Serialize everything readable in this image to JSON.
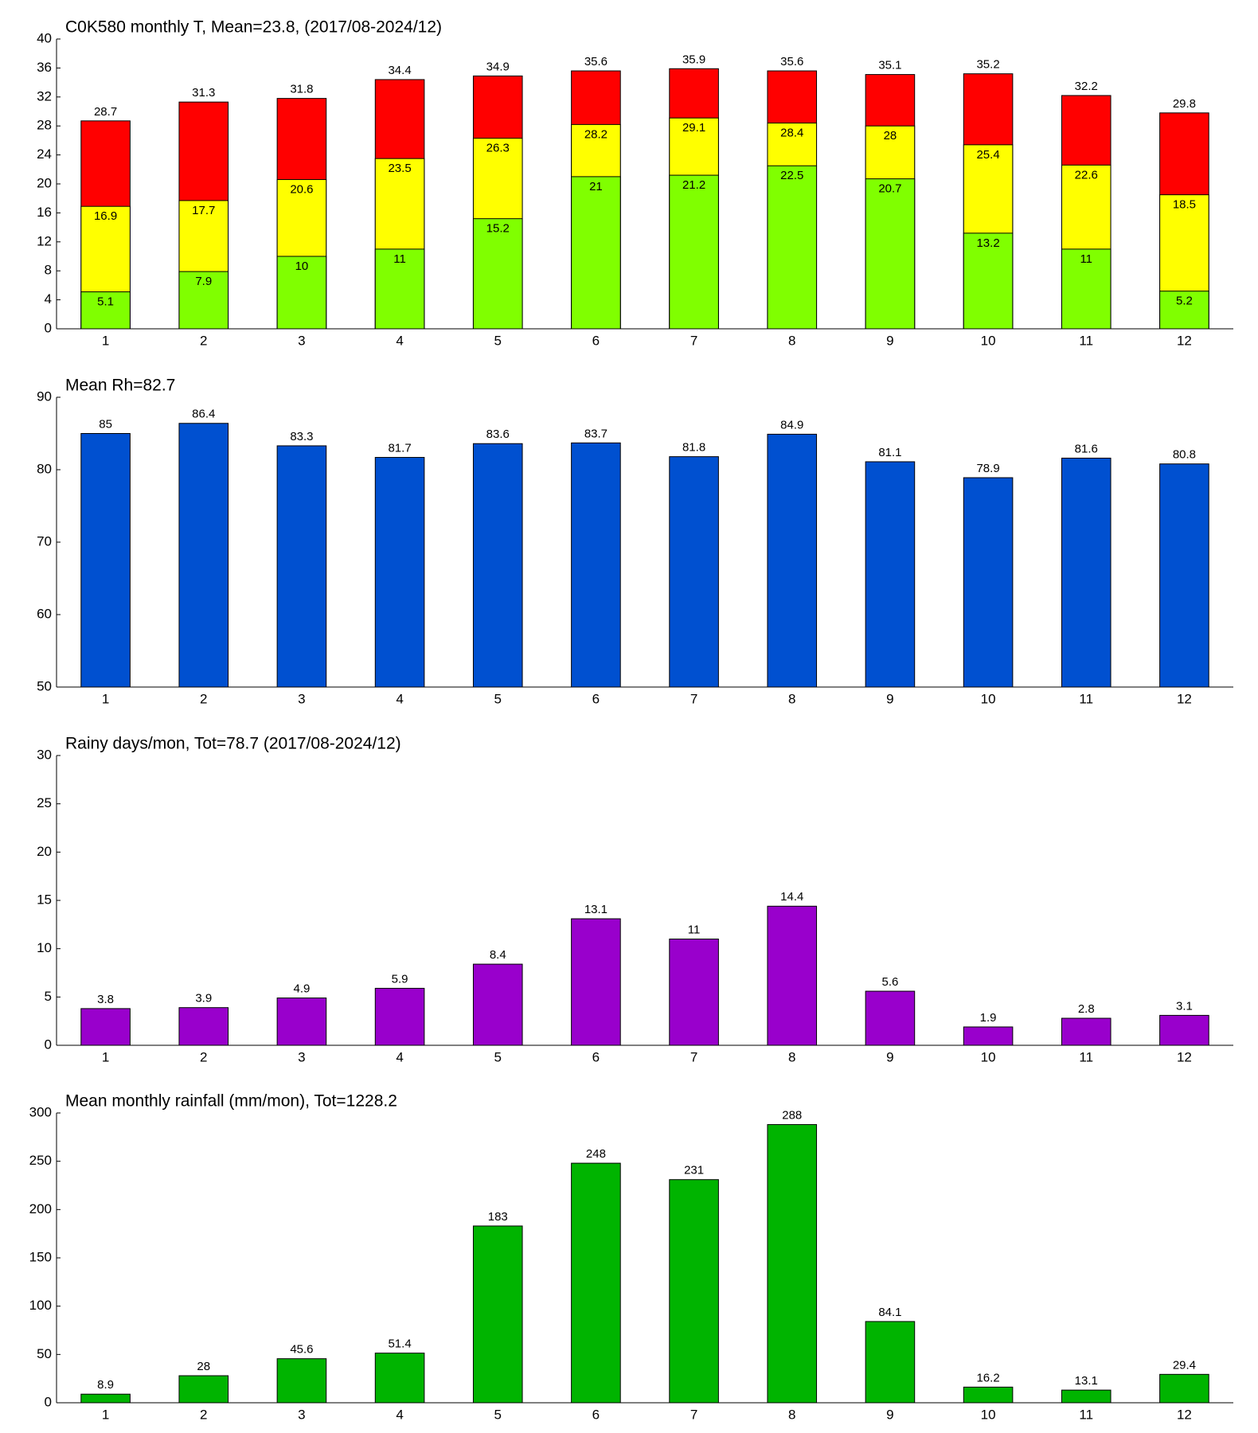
{
  "chart_data": [
    {
      "type": "bar",
      "barmode": "overlay",
      "title": "C0K580 monthly T, Mean=23.8, (2017/08-2024/12)",
      "categories": [
        "1",
        "2",
        "3",
        "4",
        "5",
        "6",
        "7",
        "8",
        "9",
        "10",
        "11",
        "12"
      ],
      "series": [
        {
          "color": "#ff0000",
          "values": [
            28.7,
            31.3,
            31.8,
            34.4,
            34.9,
            35.6,
            35.9,
            35.6,
            35.1,
            35.2,
            32.2,
            29.8
          ]
        },
        {
          "color": "#ffff00",
          "values": [
            16.9,
            17.7,
            20.6,
            23.5,
            26.3,
            28.2,
            29.1,
            28.4,
            28,
            25.4,
            22.6,
            18.5
          ]
        },
        {
          "color": "#80ff00",
          "values": [
            5.1,
            7.9,
            10,
            11,
            15.2,
            21,
            21.2,
            22.5,
            20.7,
            13.2,
            11,
            5.2
          ]
        }
      ],
      "ylim": [
        0,
        40
      ],
      "yticks": [
        0,
        4,
        8,
        12,
        16,
        20,
        24,
        28,
        32,
        36,
        40
      ]
    },
    {
      "type": "bar",
      "title": "Mean Rh=82.7",
      "categories": [
        "1",
        "2",
        "3",
        "4",
        "5",
        "6",
        "7",
        "8",
        "9",
        "10",
        "11",
        "12"
      ],
      "series": [
        {
          "color": "#0050d0",
          "values": [
            85,
            86.4,
            83.3,
            81.7,
            83.6,
            83.7,
            81.8,
            84.9,
            81.1,
            78.9,
            81.6,
            80.8
          ]
        }
      ],
      "ylim": [
        50,
        90
      ],
      "yticks": [
        50,
        60,
        70,
        80,
        90
      ]
    },
    {
      "type": "bar",
      "title": "Rainy days/mon, Tot=78.7 (2017/08-2024/12)",
      "categories": [
        "1",
        "2",
        "3",
        "4",
        "5",
        "6",
        "7",
        "8",
        "9",
        "10",
        "11",
        "12"
      ],
      "series": [
        {
          "color": "#9900cc",
          "values": [
            3.8,
            3.9,
            4.9,
            5.9,
            8.4,
            13.1,
            11,
            14.4,
            5.6,
            1.9,
            2.8,
            3.1
          ]
        }
      ],
      "ylim": [
        0,
        30
      ],
      "yticks": [
        0,
        5,
        10,
        15,
        20,
        25,
        30
      ]
    },
    {
      "type": "bar",
      "title": "Mean monthly rainfall (mm/mon), Tot=1228.2",
      "categories": [
        "1",
        "2",
        "3",
        "4",
        "5",
        "6",
        "7",
        "8",
        "9",
        "10",
        "11",
        "12"
      ],
      "series": [
        {
          "color": "#00b400",
          "values": [
            8.9,
            28,
            45.6,
            51.4,
            183,
            248,
            231,
            288,
            84.1,
            16.2,
            13.1,
            29.4
          ]
        }
      ],
      "ylim": [
        0,
        300
      ],
      "yticks": [
        0,
        50,
        100,
        150,
        200,
        250,
        300
      ]
    }
  ]
}
